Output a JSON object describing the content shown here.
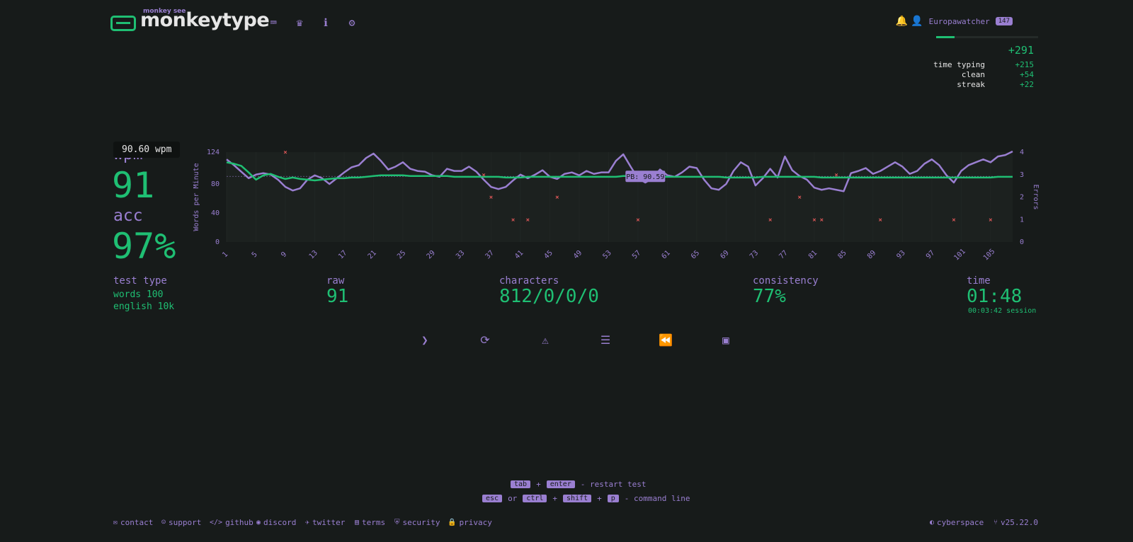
{
  "header": {
    "logo_small": "monkey see",
    "logo_text": "monkeytype",
    "nav": [
      {
        "name": "keyboard-icon",
        "glyph": "⌨"
      },
      {
        "name": "crown-icon",
        "glyph": "♛"
      },
      {
        "name": "info-icon",
        "glyph": "ℹ"
      },
      {
        "name": "gear-icon",
        "glyph": "⚙"
      }
    ],
    "username": "Europawatcher",
    "level": "147"
  },
  "xp": {
    "total": "+291",
    "breakdown": [
      {
        "label": "time typing",
        "value": "+215"
      },
      {
        "label": "clean",
        "value": "+54"
      },
      {
        "label": "streak",
        "value": "+22"
      }
    ],
    "progress_fraction": 0.18
  },
  "result": {
    "tooltip": "90.60 wpm",
    "wpm_label": "wpm",
    "wpm_value": "91",
    "acc_label": "acc",
    "acc_value": "97%",
    "test_type_label": "test type",
    "test_type_lines": [
      "words 100",
      "english 10k"
    ],
    "raw_label": "raw",
    "raw_value": "91",
    "characters_label": "characters",
    "characters_value": "812/0/0/0",
    "consistency_label": "consistency",
    "consistency_value": "77%",
    "time_label": "time",
    "time_value": "01:48",
    "session": "00:03:42 session"
  },
  "chart_data": {
    "type": "line",
    "ylabel": "Words per Minute",
    "y2label": "Errors",
    "ylim": [
      0,
      124
    ],
    "y2lim": [
      0,
      4
    ],
    "yticks": [
      0,
      40,
      80,
      124
    ],
    "y2ticks": [
      0,
      1,
      2,
      3,
      4
    ],
    "xticks": [
      1,
      5,
      9,
      13,
      17,
      21,
      25,
      29,
      33,
      37,
      41,
      45,
      49,
      53,
      57,
      61,
      65,
      69,
      73,
      77,
      81,
      85,
      89,
      93,
      97,
      101,
      105
    ],
    "xlim": [
      1,
      108
    ],
    "pb_label": "PB: 90.59",
    "pb_value": 90.59,
    "series": [
      {
        "name": "raw",
        "color": "#9a7fd1",
        "x": [
          1,
          2,
          3,
          4,
          5,
          6,
          7,
          8,
          9,
          10,
          11,
          12,
          13,
          14,
          15,
          16,
          17,
          18,
          19,
          20,
          21,
          22,
          23,
          24,
          25,
          26,
          27,
          28,
          29,
          30,
          31,
          32,
          33,
          34,
          35,
          36,
          37,
          38,
          39,
          40,
          41,
          42,
          43,
          44,
          45,
          46,
          47,
          48,
          49,
          50,
          51,
          52,
          53,
          54,
          55,
          56,
          57,
          58,
          59,
          60,
          61,
          62,
          63,
          64,
          65,
          66,
          67,
          68,
          69,
          70,
          71,
          72,
          73,
          74,
          75,
          76,
          77,
          78,
          79,
          80,
          81,
          82,
          83,
          84,
          85,
          86,
          87,
          88,
          89,
          90,
          91,
          92,
          93,
          94,
          95,
          96,
          97,
          98,
          99,
          100,
          101,
          102,
          103,
          104,
          105,
          106,
          107,
          108
        ],
        "y": [
          114,
          106,
          97,
          88,
          93,
          95,
          93,
          86,
          76,
          71,
          74,
          86,
          92,
          88,
          80,
          88,
          96,
          103,
          106,
          116,
          122,
          112,
          100,
          104,
          110,
          101,
          98,
          97,
          92,
          90,
          101,
          98,
          98,
          104,
          97,
          86,
          76,
          73,
          76,
          85,
          93,
          88,
          93,
          99,
          90,
          87,
          94,
          96,
          92,
          98,
          94,
          96,
          96,
          112,
          121,
          104,
          88,
          82,
          88,
          100,
          92,
          90,
          96,
          104,
          102,
          86,
          74,
          72,
          80,
          98,
          110,
          104,
          78,
          88,
          101,
          89,
          118,
          99,
          91,
          86,
          75,
          72,
          74,
          72,
          70,
          95,
          98,
          102,
          94,
          98,
          104,
          110,
          104,
          94,
          98,
          108,
          114,
          106,
          92,
          82,
          98,
          106,
          110,
          114,
          110,
          118,
          120,
          125
        ]
      },
      {
        "name": "wpm",
        "color": "#1fbf73",
        "x": [
          1,
          2,
          3,
          4,
          5,
          6,
          7,
          8,
          9,
          10,
          11,
          12,
          13,
          14,
          15,
          16,
          17,
          18,
          19,
          20,
          21,
          22,
          23,
          24,
          25,
          26,
          27,
          28,
          29,
          30,
          31,
          32,
          33,
          34,
          35,
          36,
          37,
          38,
          39,
          40,
          41,
          42,
          43,
          44,
          45,
          46,
          47,
          48,
          49,
          50,
          51,
          52,
          53,
          54,
          55,
          56,
          57,
          58,
          59,
          60,
          61,
          62,
          63,
          64,
          65,
          66,
          67,
          68,
          69,
          70,
          71,
          72,
          73,
          74,
          75,
          76,
          77,
          78,
          79,
          80,
          81,
          82,
          83,
          84,
          85,
          86,
          87,
          88,
          89,
          90,
          91,
          92,
          93,
          94,
          95,
          96,
          97,
          98,
          99,
          100,
          101,
          102,
          103,
          104,
          105,
          106,
          107,
          108
        ],
        "y": [
          110,
          108,
          105,
          96,
          86,
          92,
          94,
          90,
          87,
          89,
          87,
          86,
          85,
          86,
          87,
          88,
          88,
          89,
          89,
          90,
          91,
          92,
          92,
          92,
          92,
          91,
          91,
          91,
          91,
          91,
          91,
          90,
          90,
          90,
          90,
          90,
          90,
          90,
          89,
          89,
          89,
          90,
          90,
          90,
          90,
          90,
          90,
          90,
          90,
          90,
          90,
          90,
          90,
          90,
          91,
          91,
          91,
          91,
          91,
          90,
          90,
          90,
          90,
          90,
          90,
          90,
          90,
          90,
          89,
          89,
          89,
          89,
          89,
          90,
          90,
          90,
          90,
          90,
          90,
          90,
          90,
          89,
          89,
          89,
          89,
          89,
          89,
          89,
          89,
          89,
          89,
          89,
          89,
          89,
          89,
          89,
          89,
          89,
          89,
          89,
          89,
          89,
          89,
          89,
          89,
          90,
          90,
          90
        ]
      }
    ],
    "errors": {
      "x": [
        9,
        37,
        40,
        42,
        46,
        36,
        57,
        75,
        79,
        81,
        82,
        84,
        90,
        100,
        105
      ],
      "y": [
        4,
        2,
        1,
        1,
        2,
        3,
        1,
        1,
        2,
        1,
        1,
        3,
        1,
        1,
        1
      ]
    }
  },
  "buttons": [
    {
      "name": "next-test-button",
      "glyph": "❯"
    },
    {
      "name": "restart-test-button",
      "glyph": "⟳"
    },
    {
      "name": "report-error-button",
      "glyph": "⚠"
    },
    {
      "name": "words-history-button",
      "glyph": "☰"
    },
    {
      "name": "replay-button",
      "glyph": "⏪"
    },
    {
      "name": "screenshot-button",
      "glyph": "▣"
    }
  ],
  "hints": {
    "line1": {
      "k1": "tab",
      "sep": "+",
      "k2": "enter",
      "text": "- restart test"
    },
    "line2": {
      "k1": "esc",
      "or": "or",
      "k2": "ctrl",
      "k3": "shift",
      "k4": "p",
      "text": "- command line"
    },
    "plus": "+"
  },
  "footer": {
    "links": [
      {
        "label": "contact",
        "icon": "✉"
      },
      {
        "label": "support",
        "icon": "☺"
      },
      {
        "label": "github",
        "icon": "</>"
      },
      {
        "label": "discord",
        "icon": "◉"
      },
      {
        "label": "twitter",
        "icon": "✈"
      },
      {
        "label": "terms",
        "icon": "▤"
      },
      {
        "label": "security",
        "icon": "⛨"
      },
      {
        "label": "privacy",
        "icon": "🔒"
      }
    ],
    "theme": "cyberspace",
    "version": "v25.22.0"
  },
  "colors": {
    "bg": "#171b1a",
    "main": "#1fbf73",
    "sub": "#9a7fd1",
    "text": "#e6e6e6",
    "error": "#e05858"
  }
}
